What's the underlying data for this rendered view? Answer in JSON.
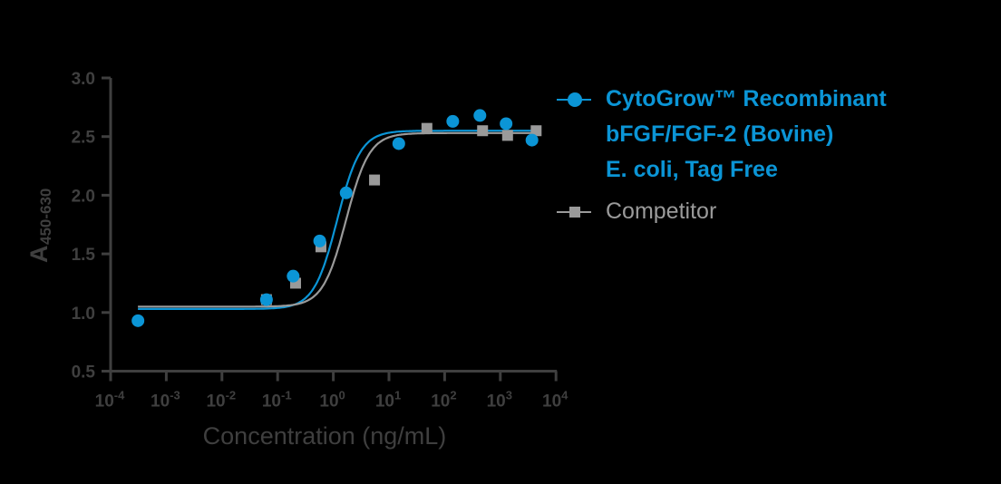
{
  "chart_data": {
    "type": "scatter",
    "title": "",
    "xlabel": "Concentration (ng/mL)",
    "ylabel": "A450-630",
    "ylabel_main": "A",
    "ylabel_sub": "450-630",
    "x_scale": "log",
    "xlim_log10": [
      -4,
      4
    ],
    "ylim": [
      0.5,
      3.0
    ],
    "x_ticks": [
      "10-4",
      "10-3",
      "10-2",
      "10-1",
      "100",
      "101",
      "102",
      "103",
      "104"
    ],
    "x_tick_exponents": [
      "-4",
      "-3",
      "-2",
      "-1",
      "0",
      "1",
      "2",
      "3",
      "4"
    ],
    "y_ticks": [
      "0.5",
      "1.0",
      "1.5",
      "2.0",
      "2.5",
      "3.0"
    ],
    "grid": false,
    "legend_position": "right",
    "series": [
      {
        "name": "CytoGrow™ Recombinant bFGF/FGF-2 (Bovine) E. coli, Tag Free",
        "marker": "circle",
        "color": "#0b95d6",
        "x": [
          0.00031,
          0.063,
          0.19,
          0.57,
          1.7,
          15,
          140,
          430,
          1270,
          3700
        ],
        "y": [
          0.93,
          1.11,
          1.31,
          1.61,
          2.02,
          2.44,
          2.63,
          2.68,
          2.61,
          2.47
        ],
        "fit": {
          "bottom": 1.03,
          "top": 2.55,
          "log_ec50": 0.07,
          "hill": 1.3,
          "x_range_log10": [
            -3.51,
            3.57
          ]
        }
      },
      {
        "name": "Competitor",
        "marker": "square",
        "color": "#9a9a9a",
        "x": [
          0.063,
          0.21,
          0.6,
          5.5,
          48,
          480,
          1350,
          4400
        ],
        "y": [
          1.11,
          1.25,
          1.56,
          2.13,
          2.57,
          2.55,
          2.51,
          2.55
        ],
        "fit": {
          "bottom": 1.05,
          "top": 2.53,
          "log_ec50": 0.23,
          "hill": 1.3,
          "x_range_log10": [
            -3.51,
            3.64
          ]
        }
      }
    ]
  },
  "legend": {
    "items": [
      {
        "label_lines": [
          "CytoGrow™ Recombinant",
          "bFGF/FGF-2 (Bovine)",
          "E. coli, Tag Free"
        ],
        "label": "CytoGrow™ Recombinant\nbFGF/FGF-2 (Bovine)\nE. coli, Tag Free"
      },
      {
        "label": "Competitor"
      }
    ]
  },
  "colors": {
    "background": "#000000",
    "axis": "#3f3f3f",
    "series_blue": "#0b95d6",
    "series_gray": "#9a9a9a"
  }
}
